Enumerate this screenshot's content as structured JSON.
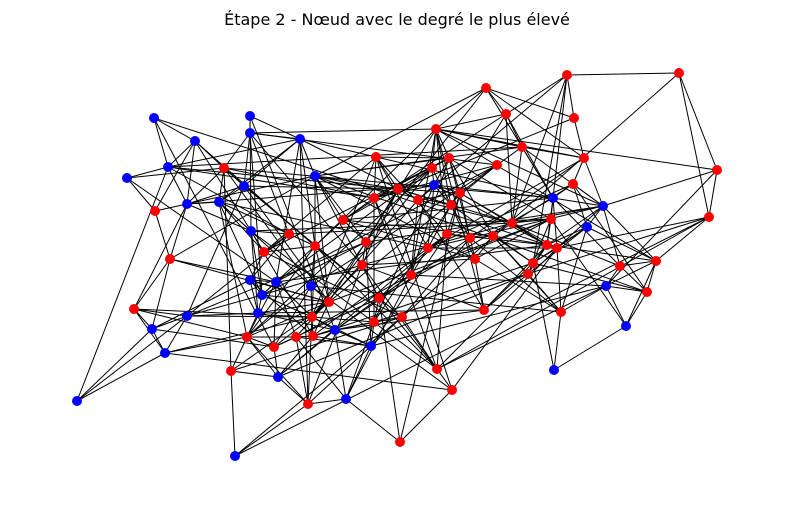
{
  "title": "Étape 2 - Nœud avec le degré le plus élevé"
}
